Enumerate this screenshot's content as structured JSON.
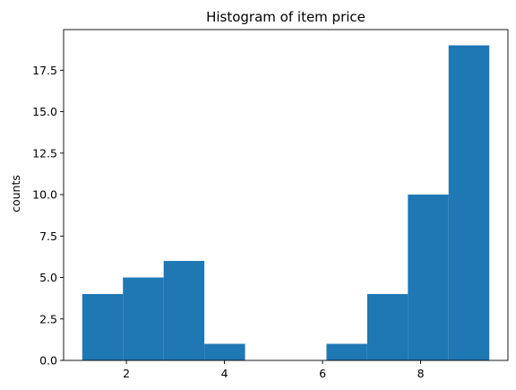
{
  "chart_data": {
    "type": "bar",
    "title": "Histogram of item price",
    "xlabel": "",
    "ylabel": "counts",
    "bar_color": "#1f77b4",
    "xlim": [
      0.72,
      9.78
    ],
    "ylim": [
      0,
      19.95
    ],
    "bins": [
      {
        "x0": 1.1,
        "x1": 1.93,
        "count": 4
      },
      {
        "x0": 1.93,
        "x1": 2.76,
        "count": 5
      },
      {
        "x0": 2.76,
        "x1": 3.59,
        "count": 6
      },
      {
        "x0": 3.59,
        "x1": 4.42,
        "count": 1
      },
      {
        "x0": 4.42,
        "x1": 5.25,
        "count": 0
      },
      {
        "x0": 5.25,
        "x1": 6.08,
        "count": 0
      },
      {
        "x0": 6.08,
        "x1": 6.91,
        "count": 1
      },
      {
        "x0": 6.91,
        "x1": 7.74,
        "count": 4
      },
      {
        "x0": 7.74,
        "x1": 8.57,
        "count": 10
      },
      {
        "x0": 8.57,
        "x1": 9.4,
        "count": 19
      }
    ],
    "xticks": [
      {
        "value": 2,
        "label": "2"
      },
      {
        "value": 4,
        "label": "4"
      },
      {
        "value": 6,
        "label": "6"
      },
      {
        "value": 8,
        "label": "8"
      }
    ],
    "yticks": [
      {
        "value": 0,
        "label": "0.0"
      },
      {
        "value": 2.5,
        "label": "2.5"
      },
      {
        "value": 5,
        "label": "5.0"
      },
      {
        "value": 7.5,
        "label": "7.5"
      },
      {
        "value": 10,
        "label": "10.0"
      },
      {
        "value": 12.5,
        "label": "12.5"
      },
      {
        "value": 15,
        "label": "15.0"
      },
      {
        "value": 17.5,
        "label": "17.5"
      }
    ],
    "grid": false,
    "legend": "none"
  }
}
